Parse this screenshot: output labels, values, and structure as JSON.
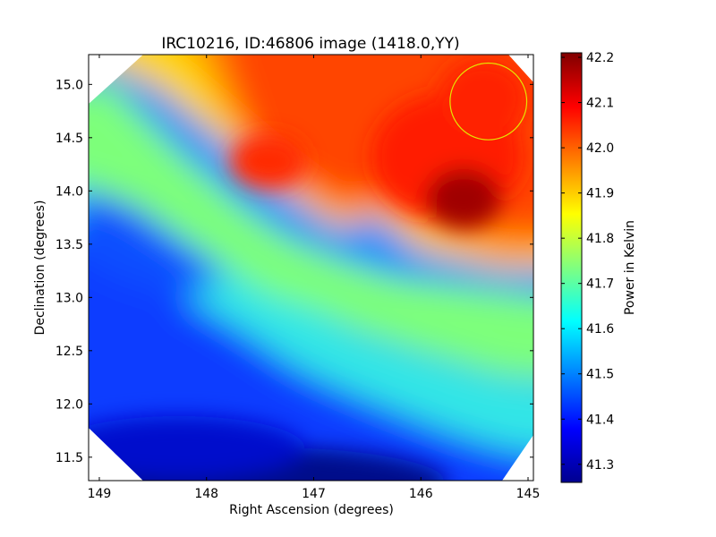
{
  "chart_data": {
    "type": "heatmap",
    "title": "IRC10216, ID:46806 image (1418.0,YY)",
    "xlabel": "Right Ascension (degrees)",
    "ylabel": "Declination (degrees)",
    "xlim": [
      149.1,
      144.95
    ],
    "ylim": [
      11.28,
      15.28
    ],
    "x_ticks": [
      149,
      148,
      147,
      146,
      145
    ],
    "x_tick_labels": [
      "149",
      "148",
      "147",
      "146",
      "145"
    ],
    "y_ticks": [
      11.5,
      12.0,
      12.5,
      13.0,
      13.5,
      14.0,
      14.5,
      15.0
    ],
    "y_tick_labels": [
      "11.5",
      "12.0",
      "12.5",
      "13.0",
      "13.5",
      "14.0",
      "14.5",
      "15.0"
    ],
    "colorbar": {
      "label": "Power in Kelvin",
      "range": [
        41.26,
        42.21
      ],
      "ticks": [
        41.3,
        41.4,
        41.5,
        41.6,
        41.7,
        41.8,
        41.9,
        42.0,
        42.1,
        42.2
      ],
      "tick_labels": [
        "41.3",
        "41.4",
        "41.5",
        "41.6",
        "41.7",
        "41.8",
        "41.9",
        "42.0",
        "42.1",
        "42.2"
      ],
      "colormap": "jet"
    },
    "features": [
      {
        "ra": 145.5,
        "dec": 13.9,
        "value": 42.21,
        "kind": "peak"
      },
      {
        "ra": 147.25,
        "dec": 14.28,
        "value": 42.1,
        "kind": "local-max"
      },
      {
        "ra": 147.2,
        "dec": 11.35,
        "value": 41.26,
        "kind": "minimum"
      }
    ],
    "circle_marker": {
      "ra": 145.37,
      "dec": 14.84,
      "radius_deg": 0.36,
      "color": "#e5e500"
    },
    "colors": {
      "background": "#ffffff",
      "axes": "#000000",
      "circle": "#e5e500"
    }
  }
}
